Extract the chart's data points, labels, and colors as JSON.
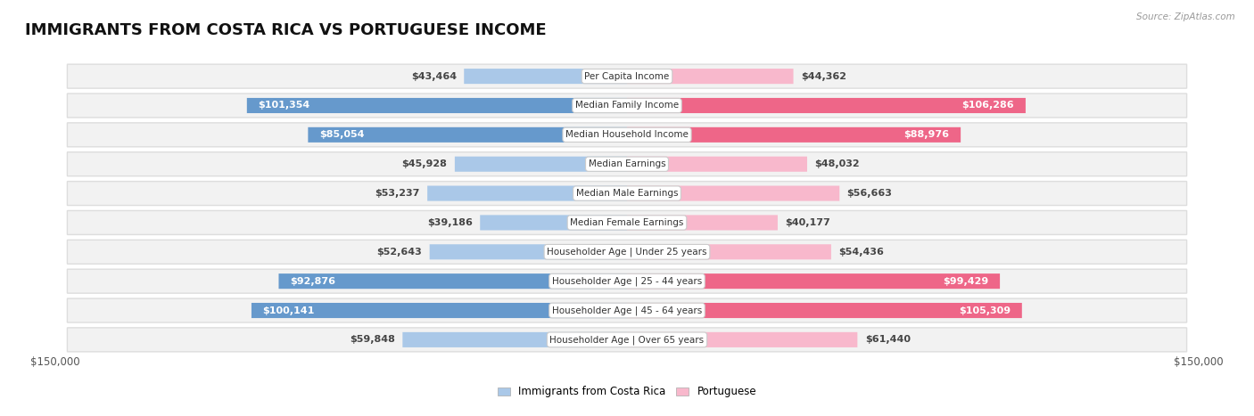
{
  "title": "IMMIGRANTS FROM COSTA RICA VS PORTUGUESE INCOME",
  "source": "Source: ZipAtlas.com",
  "categories": [
    "Per Capita Income",
    "Median Family Income",
    "Median Household Income",
    "Median Earnings",
    "Median Male Earnings",
    "Median Female Earnings",
    "Householder Age | Under 25 years",
    "Householder Age | 25 - 44 years",
    "Householder Age | 45 - 64 years",
    "Householder Age | Over 65 years"
  ],
  "costa_rica_values": [
    43464,
    101354,
    85054,
    45928,
    53237,
    39186,
    52643,
    92876,
    100141,
    59848
  ],
  "portuguese_values": [
    44362,
    106286,
    88976,
    48032,
    56663,
    40177,
    54436,
    99429,
    105309,
    61440
  ],
  "costa_rica_labels": [
    "$43,464",
    "$101,354",
    "$85,054",
    "$45,928",
    "$53,237",
    "$39,186",
    "$52,643",
    "$92,876",
    "$100,141",
    "$59,848"
  ],
  "portuguese_labels": [
    "$44,362",
    "$106,286",
    "$88,976",
    "$48,032",
    "$56,663",
    "$40,177",
    "$54,436",
    "$99,429",
    "$105,309",
    "$61,440"
  ],
  "costa_rica_color_light": "#aac8e8",
  "costa_rica_color_dark": "#6699cc",
  "portuguese_color_light": "#f8b8cc",
  "portuguese_color_dark": "#ee6688",
  "threshold": 70000,
  "max_value": 150000,
  "background_color": "#ffffff",
  "row_bg_color": "#f2f2f2",
  "row_border_color": "#dddddd",
  "title_fontsize": 13,
  "label_fontsize": 8,
  "category_fontsize": 7.5,
  "legend_label_cr": "Immigrants from Costa Rica",
  "legend_label_pt": "Portuguese",
  "xlim_label_left": "$150,000",
  "xlim_label_right": "$150,000"
}
